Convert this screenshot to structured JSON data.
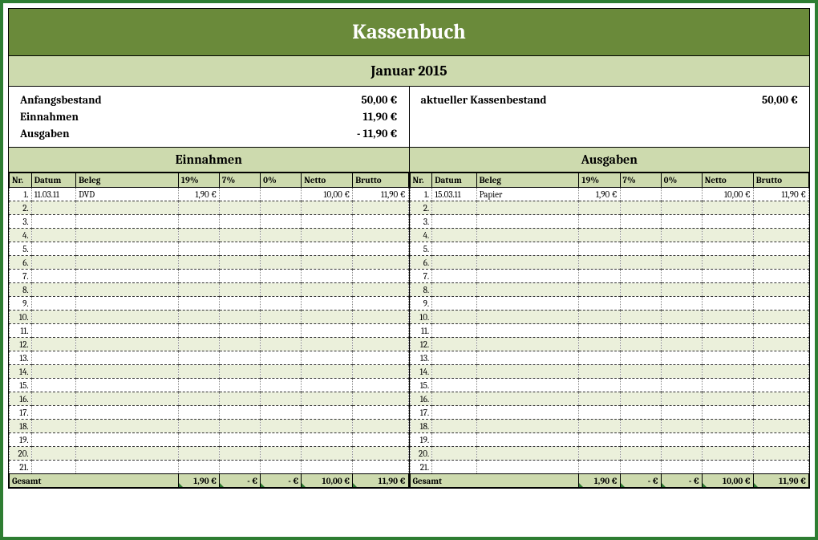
{
  "colors": {
    "border": "#2e7d32",
    "header_bg": "#6a8a3a",
    "shade_bg": "#cddaae",
    "alt_row": "#ebf0db",
    "text": "#000000"
  },
  "title": "Kassenbuch",
  "month": "Januar 2015",
  "summary": {
    "left": {
      "anfangsbestand_label": "Anfangsbestand",
      "anfangsbestand_value": "50,00 €",
      "einnahmen_label": "Einnahmen",
      "einnahmen_value": "11,90 €",
      "ausgaben_label": "Ausgaben",
      "ausgaben_value": "-  11,90 €"
    },
    "right": {
      "aktuell_label": "aktueller Kassenbestand",
      "aktuell_value": "50,00 €"
    }
  },
  "sections": {
    "einnahmen_title": "Einnahmen",
    "ausgaben_title": "Ausgaben"
  },
  "columns": {
    "nr": "Nr.",
    "datum": "Datum",
    "beleg": "Beleg",
    "t19": "19%",
    "t7": "7%",
    "t0": "0%",
    "netto": "Netto",
    "brutto": "Brutto"
  },
  "einnahmen_rows": [
    {
      "nr": "1.",
      "datum": "11.03.11",
      "beleg": "DVD",
      "t19": "1,90 €",
      "t7": "",
      "t0": "",
      "netto": "10,00 €",
      "brutto": "11,90 €"
    },
    {
      "nr": "2.",
      "datum": "",
      "beleg": "",
      "t19": "",
      "t7": "",
      "t0": "",
      "netto": "",
      "brutto": ""
    },
    {
      "nr": "3.",
      "datum": "",
      "beleg": "",
      "t19": "",
      "t7": "",
      "t0": "",
      "netto": "",
      "brutto": ""
    },
    {
      "nr": "4.",
      "datum": "",
      "beleg": "",
      "t19": "",
      "t7": "",
      "t0": "",
      "netto": "",
      "brutto": ""
    },
    {
      "nr": "5.",
      "datum": "",
      "beleg": "",
      "t19": "",
      "t7": "",
      "t0": "",
      "netto": "",
      "brutto": ""
    },
    {
      "nr": "6.",
      "datum": "",
      "beleg": "",
      "t19": "",
      "t7": "",
      "t0": "",
      "netto": "",
      "brutto": ""
    },
    {
      "nr": "7.",
      "datum": "",
      "beleg": "",
      "t19": "",
      "t7": "",
      "t0": "",
      "netto": "",
      "brutto": ""
    },
    {
      "nr": "8.",
      "datum": "",
      "beleg": "",
      "t19": "",
      "t7": "",
      "t0": "",
      "netto": "",
      "brutto": ""
    },
    {
      "nr": "9.",
      "datum": "",
      "beleg": "",
      "t19": "",
      "t7": "",
      "t0": "",
      "netto": "",
      "brutto": ""
    },
    {
      "nr": "10.",
      "datum": "",
      "beleg": "",
      "t19": "",
      "t7": "",
      "t0": "",
      "netto": "",
      "brutto": ""
    },
    {
      "nr": "11.",
      "datum": "",
      "beleg": "",
      "t19": "",
      "t7": "",
      "t0": "",
      "netto": "",
      "brutto": ""
    },
    {
      "nr": "12.",
      "datum": "",
      "beleg": "",
      "t19": "",
      "t7": "",
      "t0": "",
      "netto": "",
      "brutto": ""
    },
    {
      "nr": "13.",
      "datum": "",
      "beleg": "",
      "t19": "",
      "t7": "",
      "t0": "",
      "netto": "",
      "brutto": ""
    },
    {
      "nr": "14.",
      "datum": "",
      "beleg": "",
      "t19": "",
      "t7": "",
      "t0": "",
      "netto": "",
      "brutto": ""
    },
    {
      "nr": "15.",
      "datum": "",
      "beleg": "",
      "t19": "",
      "t7": "",
      "t0": "",
      "netto": "",
      "brutto": ""
    },
    {
      "nr": "16.",
      "datum": "",
      "beleg": "",
      "t19": "",
      "t7": "",
      "t0": "",
      "netto": "",
      "brutto": ""
    },
    {
      "nr": "17.",
      "datum": "",
      "beleg": "",
      "t19": "",
      "t7": "",
      "t0": "",
      "netto": "",
      "brutto": ""
    },
    {
      "nr": "18.",
      "datum": "",
      "beleg": "",
      "t19": "",
      "t7": "",
      "t0": "",
      "netto": "",
      "brutto": ""
    },
    {
      "nr": "19.",
      "datum": "",
      "beleg": "",
      "t19": "",
      "t7": "",
      "t0": "",
      "netto": "",
      "brutto": ""
    },
    {
      "nr": "20.",
      "datum": "",
      "beleg": "",
      "t19": "",
      "t7": "",
      "t0": "",
      "netto": "",
      "brutto": ""
    },
    {
      "nr": "21.",
      "datum": "",
      "beleg": "",
      "t19": "",
      "t7": "",
      "t0": "",
      "netto": "",
      "brutto": ""
    }
  ],
  "ausgaben_rows": [
    {
      "nr": "1.",
      "datum": "15.03.11",
      "beleg": "Papier",
      "t19": "1,90 €",
      "t7": "",
      "t0": "",
      "netto": "10,00 €",
      "brutto": "11,90 €"
    },
    {
      "nr": "2.",
      "datum": "",
      "beleg": "",
      "t19": "",
      "t7": "",
      "t0": "",
      "netto": "",
      "brutto": ""
    },
    {
      "nr": "3.",
      "datum": "",
      "beleg": "",
      "t19": "",
      "t7": "",
      "t0": "",
      "netto": "",
      "brutto": ""
    },
    {
      "nr": "4.",
      "datum": "",
      "beleg": "",
      "t19": "",
      "t7": "",
      "t0": "",
      "netto": "",
      "brutto": ""
    },
    {
      "nr": "5.",
      "datum": "",
      "beleg": "",
      "t19": "",
      "t7": "",
      "t0": "",
      "netto": "",
      "brutto": ""
    },
    {
      "nr": "6.",
      "datum": "",
      "beleg": "",
      "t19": "",
      "t7": "",
      "t0": "",
      "netto": "",
      "brutto": ""
    },
    {
      "nr": "7.",
      "datum": "",
      "beleg": "",
      "t19": "",
      "t7": "",
      "t0": "",
      "netto": "",
      "brutto": ""
    },
    {
      "nr": "8.",
      "datum": "",
      "beleg": "",
      "t19": "",
      "t7": "",
      "t0": "",
      "netto": "",
      "brutto": ""
    },
    {
      "nr": "9.",
      "datum": "",
      "beleg": "",
      "t19": "",
      "t7": "",
      "t0": "",
      "netto": "",
      "brutto": ""
    },
    {
      "nr": "10.",
      "datum": "",
      "beleg": "",
      "t19": "",
      "t7": "",
      "t0": "",
      "netto": "",
      "brutto": ""
    },
    {
      "nr": "11.",
      "datum": "",
      "beleg": "",
      "t19": "",
      "t7": "",
      "t0": "",
      "netto": "",
      "brutto": ""
    },
    {
      "nr": "12.",
      "datum": "",
      "beleg": "",
      "t19": "",
      "t7": "",
      "t0": "",
      "netto": "",
      "brutto": ""
    },
    {
      "nr": "13.",
      "datum": "",
      "beleg": "",
      "t19": "",
      "t7": "",
      "t0": "",
      "netto": "",
      "brutto": ""
    },
    {
      "nr": "14.",
      "datum": "",
      "beleg": "",
      "t19": "",
      "t7": "",
      "t0": "",
      "netto": "",
      "brutto": ""
    },
    {
      "nr": "15.",
      "datum": "",
      "beleg": "",
      "t19": "",
      "t7": "",
      "t0": "",
      "netto": "",
      "brutto": ""
    },
    {
      "nr": "16.",
      "datum": "",
      "beleg": "",
      "t19": "",
      "t7": "",
      "t0": "",
      "netto": "",
      "brutto": ""
    },
    {
      "nr": "17.",
      "datum": "",
      "beleg": "",
      "t19": "",
      "t7": "",
      "t0": "",
      "netto": "",
      "brutto": ""
    },
    {
      "nr": "18.",
      "datum": "",
      "beleg": "",
      "t19": "",
      "t7": "",
      "t0": "",
      "netto": "",
      "brutto": ""
    },
    {
      "nr": "19.",
      "datum": "",
      "beleg": "",
      "t19": "",
      "t7": "",
      "t0": "",
      "netto": "",
      "brutto": ""
    },
    {
      "nr": "20.",
      "datum": "",
      "beleg": "",
      "t19": "",
      "t7": "",
      "t0": "",
      "netto": "",
      "brutto": ""
    },
    {
      "nr": "21.",
      "datum": "",
      "beleg": "",
      "t19": "",
      "t7": "",
      "t0": "",
      "netto": "",
      "brutto": ""
    }
  ],
  "totals": {
    "label": "Gesamt",
    "einnahmen": {
      "t19": "1,90 €",
      "t7": "-   €",
      "t0": "-   €",
      "netto": "10,00 €",
      "brutto": "11,90 €"
    },
    "ausgaben": {
      "t19": "1,90 €",
      "t7": "-   €",
      "t0": "-   €",
      "netto": "10,00 €",
      "brutto": "11,90 €"
    }
  },
  "row_count": 21
}
